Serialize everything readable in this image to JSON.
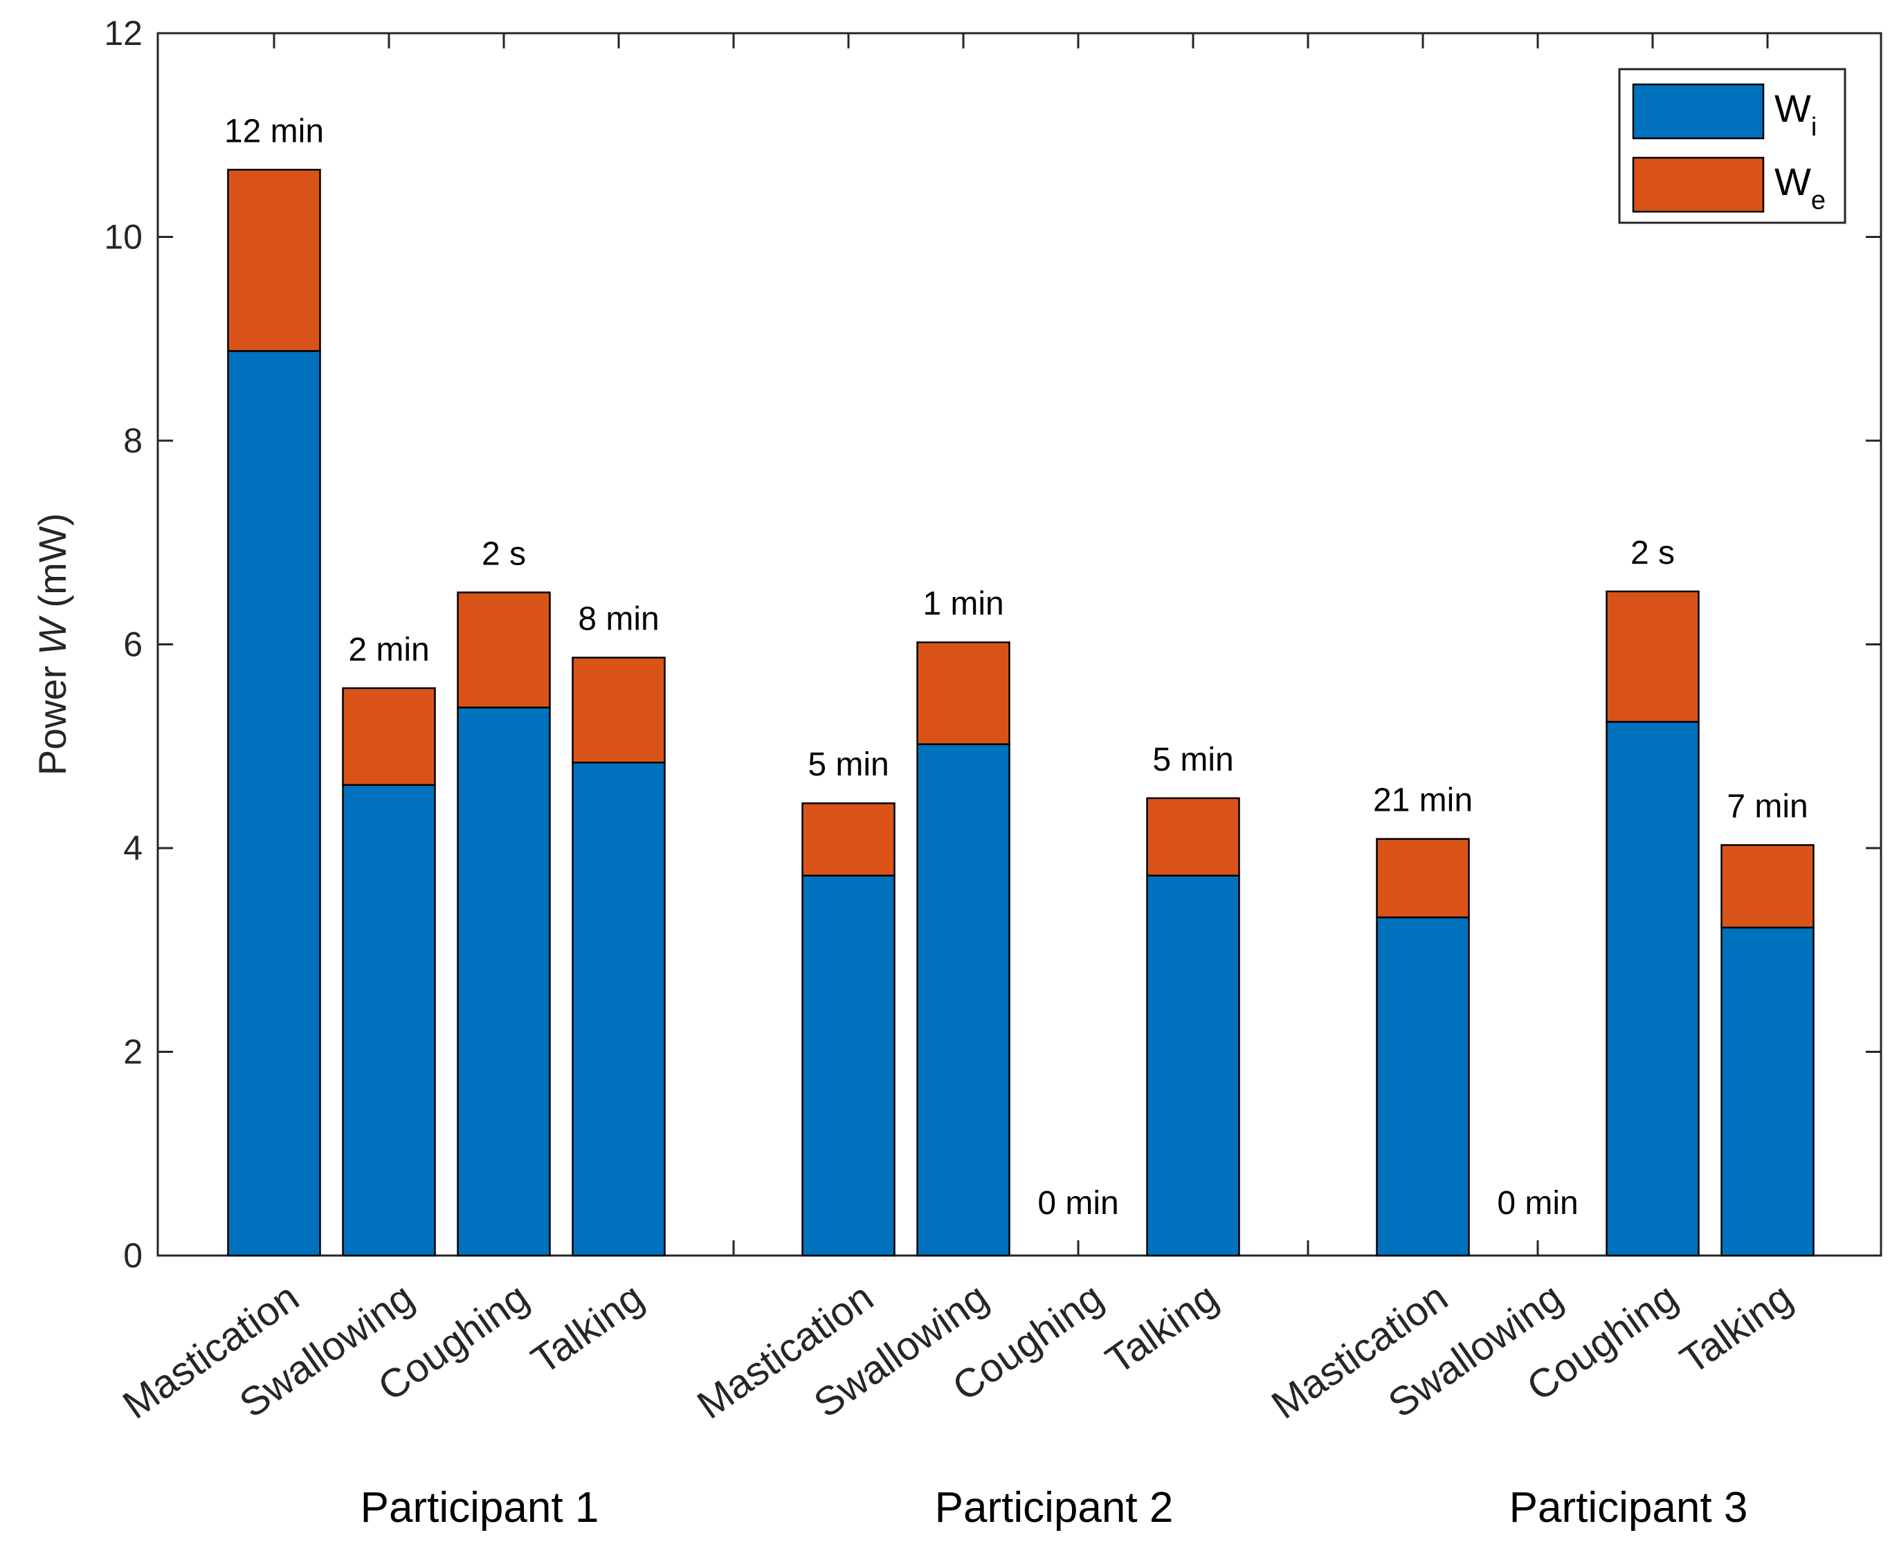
{
  "chart_data": {
    "type": "bar",
    "stacked": true,
    "ylabel_prefix": "Power ",
    "ylabel_var": "W",
    "ylabel_suffix": " (mW)",
    "ylim": [
      0,
      12
    ],
    "yticks": [
      0,
      2,
      4,
      6,
      8,
      10,
      12
    ],
    "legend_position": "top-right",
    "colors": {
      "Wi": "#0072BD",
      "We": "#D95319"
    },
    "legend": [
      {
        "key": "Wi",
        "base": "W",
        "sub": "i"
      },
      {
        "key": "We",
        "base": "W",
        "sub": "e"
      }
    ],
    "groups": [
      {
        "name": "Participant 1",
        "bars": [
          {
            "category": "Mastication",
            "Wi": 8.88,
            "We": 1.78,
            "duration": "12 min"
          },
          {
            "category": "Swallowing",
            "Wi": 4.62,
            "We": 0.95,
            "duration": "2 min"
          },
          {
            "category": "Coughing",
            "Wi": 5.38,
            "We": 1.13,
            "duration": "2 s"
          },
          {
            "category": "Talking",
            "Wi": 4.84,
            "We": 1.03,
            "duration": "8 min"
          }
        ]
      },
      {
        "name": "Participant 2",
        "bars": [
          {
            "category": "Mastication",
            "Wi": 3.73,
            "We": 0.71,
            "duration": "5 min"
          },
          {
            "category": "Swallowing",
            "Wi": 5.02,
            "We": 1.0,
            "duration": "1 min"
          },
          {
            "category": "Coughing",
            "Wi": 0,
            "We": 0,
            "duration": "0 min"
          },
          {
            "category": "Talking",
            "Wi": 3.73,
            "We": 0.76,
            "duration": "5 min"
          }
        ]
      },
      {
        "name": "Participant 3",
        "bars": [
          {
            "category": "Mastication",
            "Wi": 3.32,
            "We": 0.77,
            "duration": "21 min"
          },
          {
            "category": "Swallowing",
            "Wi": 0,
            "We": 0,
            "duration": "0 min"
          },
          {
            "category": "Coughing",
            "Wi": 5.24,
            "We": 1.28,
            "duration": "2 s"
          },
          {
            "category": "Talking",
            "Wi": 3.22,
            "We": 0.81,
            "duration": "7 min"
          }
        ]
      }
    ]
  }
}
